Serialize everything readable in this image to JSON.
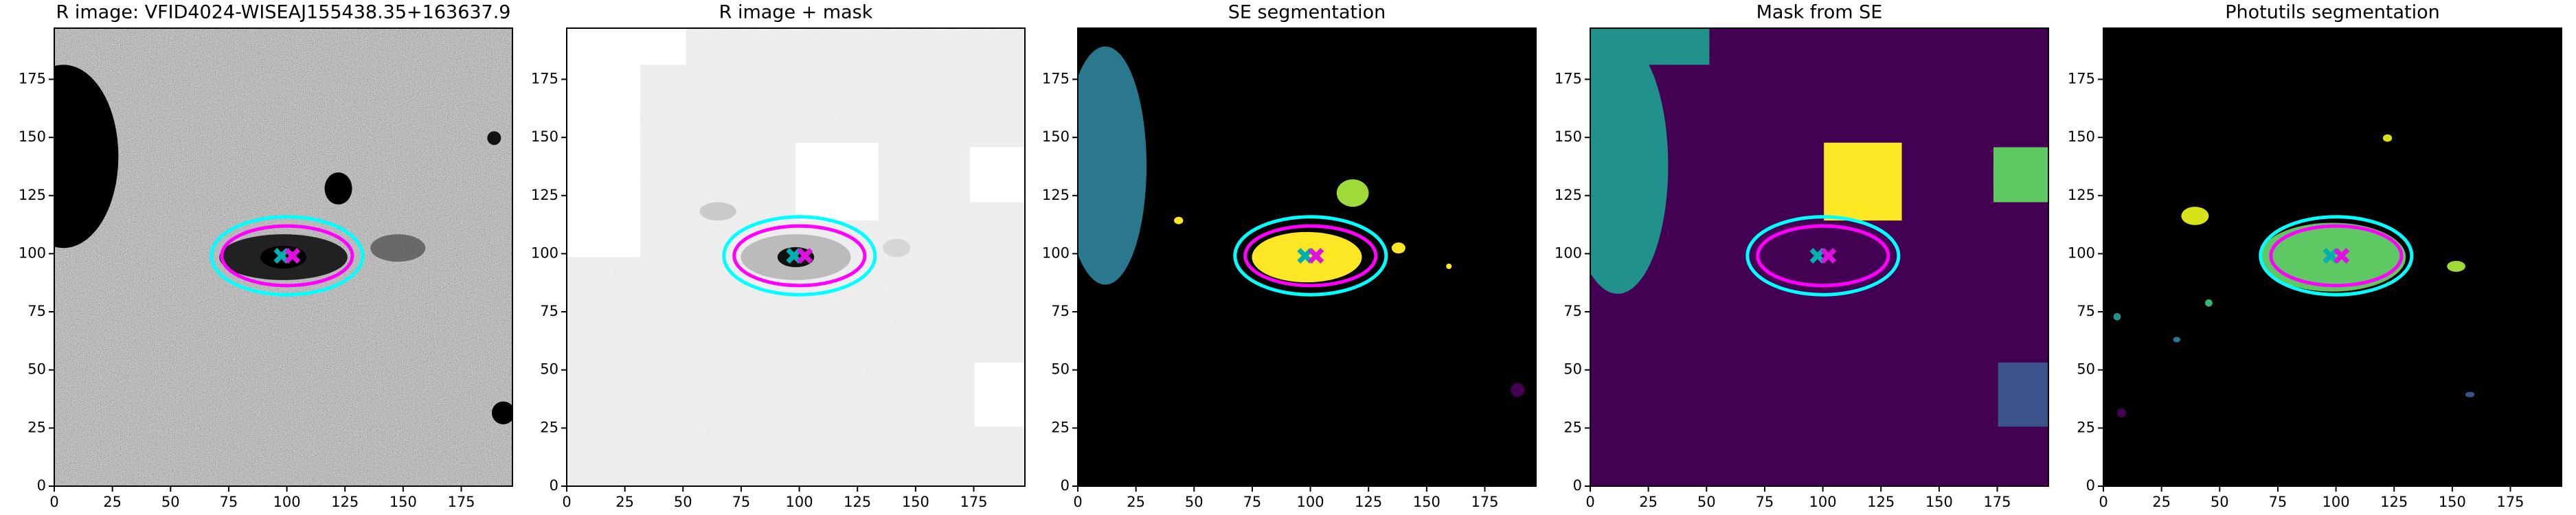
{
  "chart_data": [
    {
      "type": "image",
      "title": "R image: VFID4024-WISEAJ155438.35+163637.9",
      "xlim": [
        0,
        197
      ],
      "ylim": [
        0,
        197
      ],
      "xticks": [
        0,
        25,
        50,
        75,
        100,
        125,
        150,
        175
      ],
      "yticks": [
        0,
        25,
        50,
        75,
        100,
        125,
        150,
        175
      ]
    },
    {
      "type": "image",
      "title": "R image + mask",
      "xlim": [
        0,
        197
      ],
      "ylim": [
        0,
        197
      ],
      "xticks": [
        0,
        25,
        50,
        75,
        100,
        125,
        150,
        175
      ],
      "yticks": [
        0,
        25,
        50,
        75,
        100,
        125,
        150,
        175
      ]
    },
    {
      "type": "image",
      "title": "SE segmentation",
      "xlim": [
        0,
        197
      ],
      "ylim": [
        0,
        197
      ],
      "xticks": [
        0,
        25,
        50,
        75,
        100,
        125,
        150,
        175
      ],
      "yticks": [
        0,
        25,
        50,
        75,
        100,
        125,
        150,
        175
      ]
    },
    {
      "type": "image",
      "title": "Mask from SE",
      "xlim": [
        0,
        197
      ],
      "ylim": [
        0,
        197
      ],
      "xticks": [
        0,
        25,
        50,
        75,
        100,
        125,
        150,
        175
      ],
      "yticks": [
        0,
        25,
        50,
        75,
        100,
        125,
        150,
        175
      ]
    },
    {
      "type": "image",
      "title": "Photutils segmentation",
      "xlim": [
        0,
        197
      ],
      "ylim": [
        0,
        197
      ],
      "xticks": [
        0,
        25,
        50,
        75,
        100,
        125,
        150,
        175
      ],
      "yticks": [
        0,
        25,
        50,
        75,
        100,
        125,
        150,
        175
      ]
    }
  ]
}
